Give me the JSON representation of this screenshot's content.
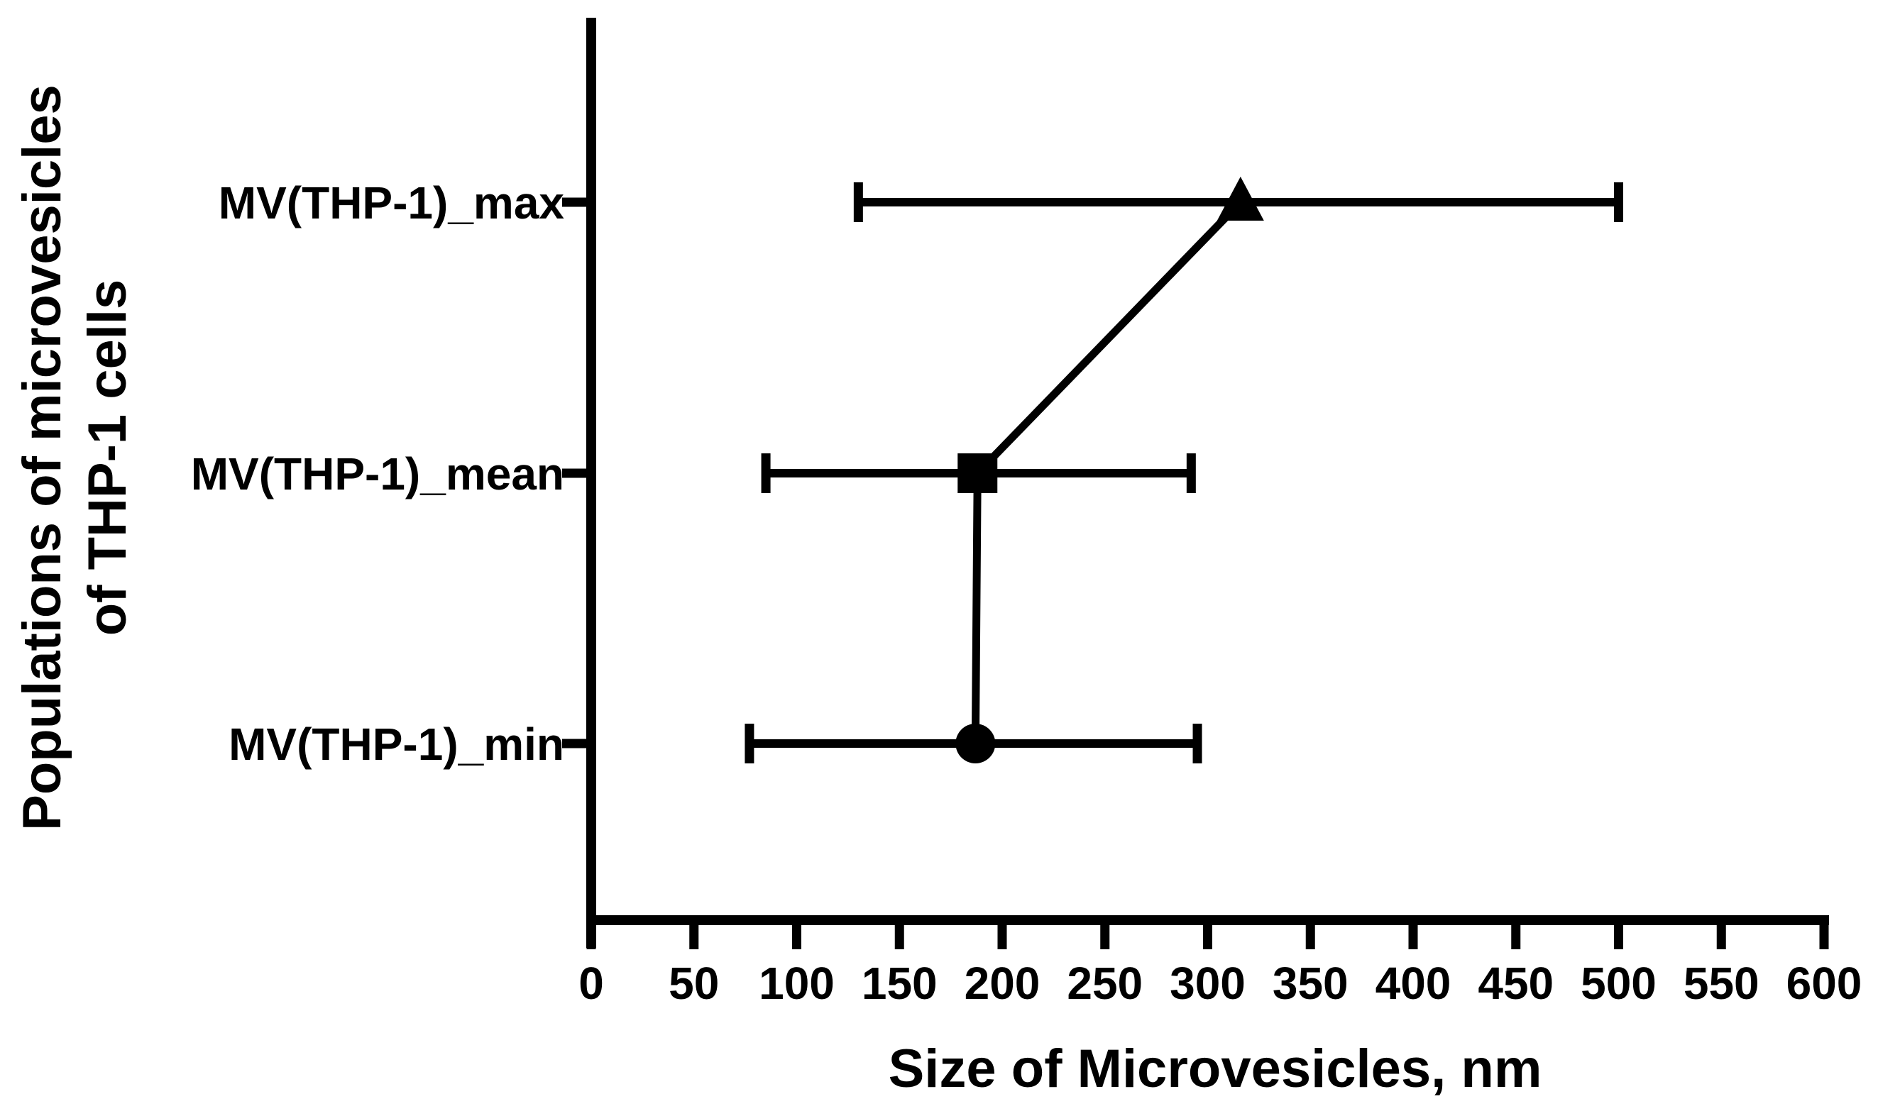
{
  "figure": {
    "background_color": "#ffffff",
    "ink_color": "#000000"
  },
  "chart_data": {
    "type": "scatter",
    "subtype": "category-vs-value points with horizontal error bars, markers connected by a line",
    "title": "",
    "xlabel": "Size of Microvesicles, nm",
    "ylabel_lines": [
      "Populations of microvesicles",
      "of THP-1 cells"
    ],
    "xlim": [
      0,
      600
    ],
    "xticks": [
      0,
      50,
      100,
      150,
      200,
      250,
      300,
      350,
      400,
      450,
      500,
      550,
      600
    ],
    "grid": false,
    "legend": false,
    "categories": [
      "MV(THP-1)_max",
      "MV(THP-1)_mean",
      "MV(THP-1)_min"
    ],
    "points": [
      {
        "label": "MV(THP-1)_max",
        "marker": "triangle-up",
        "value_nm": 316,
        "error_low_nm": 130,
        "error_high_nm": 500
      },
      {
        "label": "MV(THP-1)_mean",
        "marker": "square",
        "value_nm": 188,
        "error_low_nm": 85,
        "error_high_nm": 292
      },
      {
        "label": "MV(THP-1)_min",
        "marker": "circle",
        "value_nm": 187,
        "error_low_nm": 77,
        "error_high_nm": 295
      }
    ],
    "points_connected_by_line": true,
    "marker_color": "#000000",
    "line_color": "#000000",
    "error_bar_color": "#000000"
  }
}
